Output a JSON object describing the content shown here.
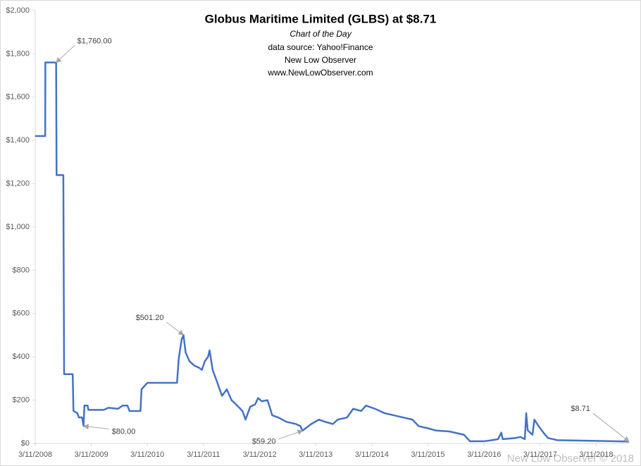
{
  "chart_data": {
    "type": "line",
    "title": "Globus Maritime Limited (GLBS) at $8.71",
    "subtitle": "Chart of the Day",
    "notes": [
      "data source: Yahoo!Finance",
      "New Low Observer",
      "www.NewLowObserver.com"
    ],
    "watermark": "New Low Observer © 2018",
    "x": [
      "3/11/2008",
      "5/15/2008",
      "5/16/2008",
      "7/25/2008",
      "7/28/2008",
      "9/10/2008",
      "9/15/2008",
      "11/10/2008",
      "11/15/2008",
      "12/10/2008",
      "12/20/2008",
      "1/10/2009",
      "1/20/2009",
      "1/25/2009",
      "2/15/2009",
      "2/20/2009",
      "6/1/2009",
      "7/1/2009",
      "9/1/2009",
      "10/1/2009",
      "11/1/2009",
      "11/15/2009",
      "1/25/2010",
      "2/1/2010",
      "2/20/2010",
      "3/11/2010",
      "9/20/2010",
      "10/1/2010",
      "10/20/2010",
      "11/1/2010",
      "11/15/2010",
      "12/10/2010",
      "1/10/2011",
      "2/10/2011",
      "3/1/2011",
      "3/20/2011",
      "4/10/2011",
      "4/20/2011",
      "5/10/2011",
      "6/10/2011",
      "7/10/2011",
      "8/10/2011",
      "9/10/2011",
      "10/10/2011",
      "11/20/2011",
      "12/10/2011",
      "1/10/2012",
      "2/10/2012",
      "3/1/2012",
      "3/25/2012",
      "5/1/2012",
      "6/1/2012",
      "7/10/2012",
      "9/1/2012",
      "11/1/2012",
      "12/1/2012",
      "12/15/2012",
      "2/10/2013",
      "4/1/2013",
      "5/10/2013",
      "7/1/2013",
      "8/1/2013",
      "10/1/2013",
      "11/10/2013",
      "1/1/2014",
      "2/1/2014",
      "4/1/2014",
      "6/1/2014",
      "8/1/2014",
      "10/1/2014",
      "12/1/2014",
      "1/10/2015",
      "3/11/2015",
      "5/1/2015",
      "8/1/2015",
      "11/1/2015",
      "12/10/2015",
      "3/11/2016",
      "5/1/2016",
      "6/10/2016",
      "7/1/2016",
      "7/10/2016",
      "10/1/2016",
      "11/1/2016",
      "12/1/2016",
      "12/10/2016",
      "12/20/2016",
      "1/20/2017",
      "2/1/2017",
      "3/1/2017",
      "4/1/2017",
      "5/1/2017",
      "7/1/2017",
      "3/11/2018",
      "10/10/2018"
    ],
    "series": [
      {
        "name": "GLBS",
        "color": "#4472c4",
        "values": [
          1420,
          1420,
          1760,
          1760,
          1240,
          1240,
          320,
          320,
          150,
          140,
          120,
          120,
          80,
          175,
          175,
          155,
          155,
          165,
          160,
          175,
          175,
          150,
          150,
          250,
          265,
          280,
          280,
          390,
          480,
          501.2,
          420,
          380,
          360,
          350,
          340,
          380,
          400,
          430,
          340,
          280,
          220,
          250,
          200,
          180,
          150,
          110,
          170,
          180,
          210,
          195,
          200,
          130,
          120,
          100,
          90,
          80,
          59.2,
          90,
          110,
          100,
          90,
          110,
          120,
          160,
          150,
          175,
          160,
          140,
          130,
          120,
          110,
          80,
          70,
          60,
          55,
          40,
          10,
          10,
          15,
          20,
          50,
          20,
          25,
          30,
          20,
          140,
          60,
          40,
          110,
          80,
          50,
          25,
          15,
          12,
          8.71
        ]
      }
    ],
    "annotations": [
      {
        "text": "$1,760.00",
        "index": 3
      },
      {
        "text": "$80.00",
        "index": 12
      },
      {
        "text": "$501.20",
        "index": 29
      },
      {
        "text": "$59.20",
        "index": 56
      },
      {
        "text": "$8.71",
        "index": 94
      }
    ],
    "xlim": [
      "3/11/2008",
      "10/15/2018"
    ],
    "xticks": [
      "3/11/2008",
      "3/11/2009",
      "3/11/2010",
      "3/11/2011",
      "3/11/2012",
      "3/11/2013",
      "3/11/2014",
      "3/11/2015",
      "3/11/2016",
      "3/11/2017",
      "3/11/2018"
    ],
    "ylim": [
      0,
      2000
    ],
    "yticks": [
      {
        "value": 0,
        "label": "$0"
      },
      {
        "value": 200,
        "label": "$200"
      },
      {
        "value": 400,
        "label": "$400"
      },
      {
        "value": 600,
        "label": "$600"
      },
      {
        "value": 800,
        "label": "$800"
      },
      {
        "value": 1000,
        "label": "$1,000"
      },
      {
        "value": 1200,
        "label": "$1,200"
      },
      {
        "value": 1400,
        "label": "$1,400"
      },
      {
        "value": 1600,
        "label": "$1,600"
      },
      {
        "value": 1800,
        "label": "$1,800"
      },
      {
        "value": 2000,
        "label": "$2,000"
      }
    ],
    "grid": false
  }
}
